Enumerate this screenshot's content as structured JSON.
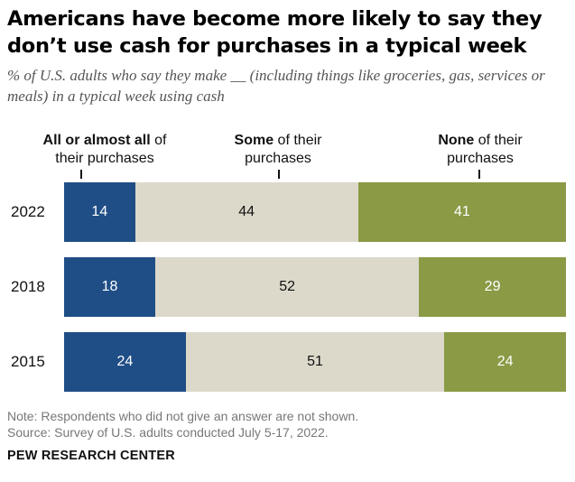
{
  "title": "Americans have become more likely to say they don’t use cash for purchases in a typical week",
  "subtitle": "% of U.S. adults who say they make __ (including things like groceries, gas, services or meals) in a typical week using cash",
  "column_headers": [
    {
      "bold": "All or almost all",
      "rest": " of their purchases"
    },
    {
      "bold": "Some",
      "rest": " of their purchases"
    },
    {
      "bold": "None",
      "rest": " of their purchases"
    }
  ],
  "colors": {
    "all": "#1f4e86",
    "some": "#dcd9cb",
    "none": "#8a9a45",
    "label_on_dark": "#ffffff",
    "label_on_light": "#111111"
  },
  "chart_data": {
    "type": "bar",
    "stacked": true,
    "orientation": "horizontal",
    "categories": [
      "2022",
      "2018",
      "2015"
    ],
    "series": [
      {
        "name": "All or almost all of their purchases",
        "values": [
          14,
          18,
          24
        ]
      },
      {
        "name": "Some of their purchases",
        "values": [
          44,
          52,
          51
        ]
      },
      {
        "name": "None of their purchases",
        "values": [
          41,
          29,
          24
        ]
      }
    ],
    "xlim": [
      0,
      100
    ]
  },
  "note": "Note: Respondents who did not give an answer are not shown.",
  "source": "Source: Survey of U.S. adults conducted July 5-17, 2022.",
  "brand": "PEW RESEARCH CENTER"
}
